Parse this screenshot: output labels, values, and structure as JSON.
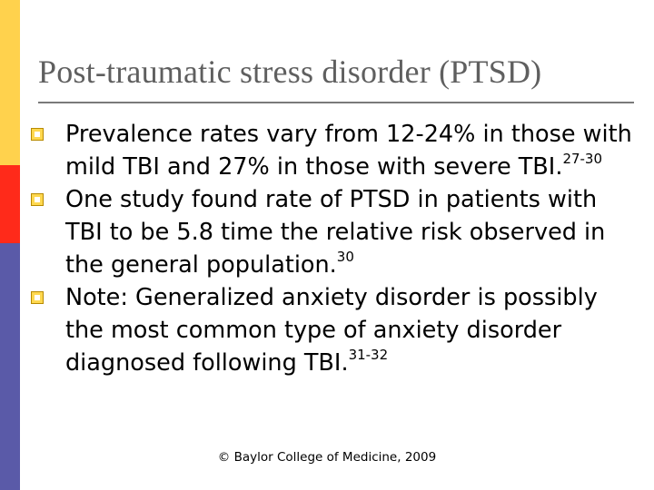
{
  "colors": {
    "strip_top": "#FFD24D",
    "strip_middle": "#FF2A1A",
    "strip_bottom": "#5A5AA8",
    "bullet_fill": "#FFD84F",
    "title_text": "#5f5f5f"
  },
  "slide": {
    "title": "Post-traumatic stress disorder (PTSD)",
    "bullets": [
      {
        "icon": "square-bullet-icon",
        "text": "Prevalence rates vary from 12-24% in those with mild TBI and 27% in those with severe TBI.",
        "citation": "27-30"
      },
      {
        "icon": "square-bullet-icon",
        "text": "One study found rate of PTSD in patients with TBI to be 5.8 time the relative risk observed in the general population.",
        "citation": "30"
      },
      {
        "icon": "square-bullet-icon",
        "text": "Note: Generalized anxiety disorder is possibly the most common type of anxiety disorder diagnosed following TBI.",
        "citation": "31-32"
      }
    ],
    "footer": "© Baylor College of Medicine, 2009"
  }
}
